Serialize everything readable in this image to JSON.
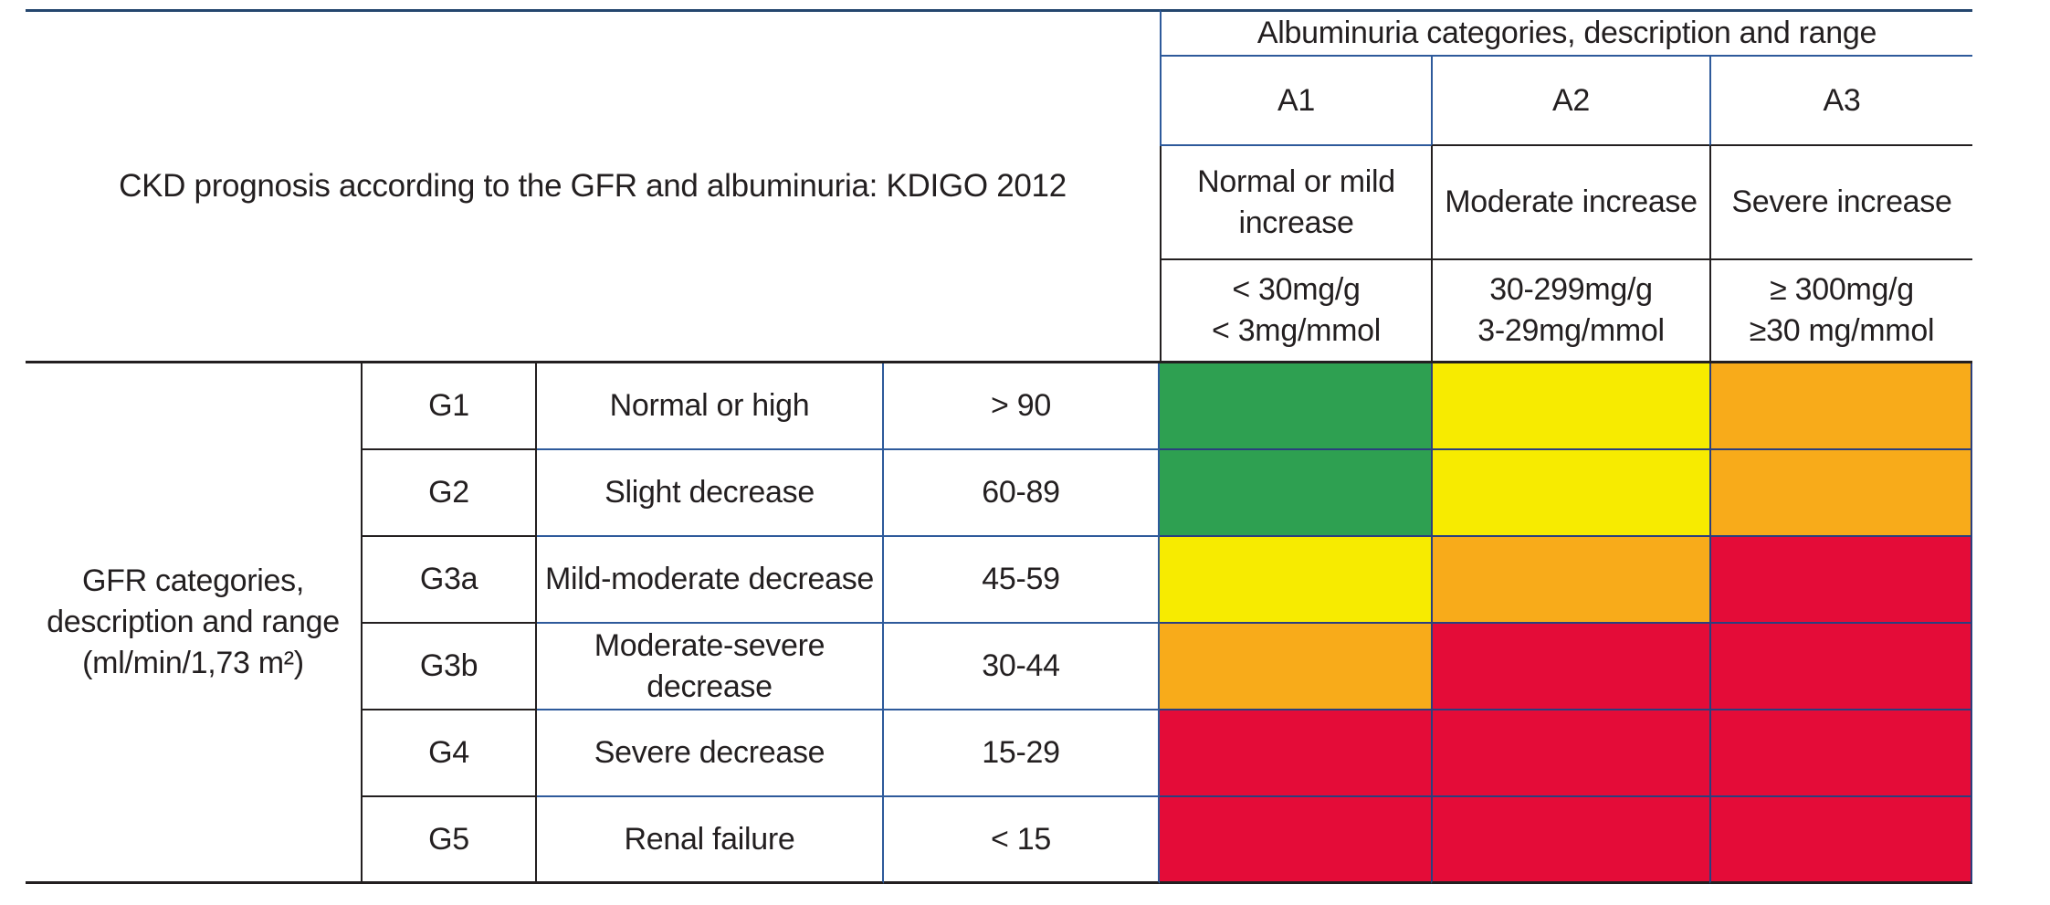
{
  "title": "CKD prognosis according to the GFR and albuminuria: KDIGO 2012",
  "albuminuria": {
    "header": "Albuminuria categories, description and range",
    "categories": [
      {
        "code": "A1",
        "description": "Normal or mild increase",
        "range_line1": "< 30mg/g",
        "range_line2": "< 3mg/mmol"
      },
      {
        "code": "A2",
        "description": "Moderate increase",
        "range_line1": "30-299mg/g",
        "range_line2": "3-29mg/mmol"
      },
      {
        "code": "A3",
        "description": "Severe increase",
        "range_line1": "≥ 300mg/g",
        "range_line2": "≥30 mg/mmol"
      }
    ]
  },
  "gfr": {
    "header_line1": "GFR categories,",
    "header_line2": "description and range",
    "header_line3": "(ml/min/1,73 m²)",
    "rows": [
      {
        "code": "G1",
        "description": "Normal or high",
        "range": "> 90",
        "risk": [
          "green",
          "yellow",
          "orange"
        ]
      },
      {
        "code": "G2",
        "description": "Slight decrease",
        "range": "60-89",
        "risk": [
          "green",
          "yellow",
          "orange"
        ]
      },
      {
        "code": "G3a",
        "description": "Mild-moderate decrease",
        "range": "45-59",
        "risk": [
          "yellow",
          "orange",
          "red"
        ]
      },
      {
        "code": "G3b",
        "description": "Moderate-severe decrease",
        "range": "30-44",
        "risk": [
          "orange",
          "red",
          "red"
        ]
      },
      {
        "code": "G4",
        "description": "Severe decrease",
        "range": "15-29",
        "risk": [
          "red",
          "red",
          "red"
        ]
      },
      {
        "code": "G5",
        "description": "Renal failure",
        "range": "< 15",
        "risk": [
          "red",
          "red",
          "red"
        ]
      }
    ]
  },
  "colors": {
    "green": "#2ea051",
    "yellow": "#f7eb00",
    "orange": "#f8ab1a",
    "red": "#e40c38"
  },
  "chart_data": {
    "type": "heatmap",
    "title": "CKD prognosis according to the GFR and albuminuria: KDIGO 2012",
    "x_axis_label": "Albuminuria categories, description and range",
    "y_axis_label": "GFR categories, description and range (ml/min/1,73 m²)",
    "x_categories": [
      "A1",
      "A2",
      "A3"
    ],
    "x_descriptions": [
      "Normal or mild increase",
      "Moderate increase",
      "Severe increase"
    ],
    "x_ranges": [
      "< 30mg/g | < 3mg/mmol",
      "30-299mg/g | 3-29mg/mmol",
      "≥ 300mg/g | ≥30 mg/mmol"
    ],
    "y_categories": [
      "G1",
      "G2",
      "G3a",
      "G3b",
      "G4",
      "G5"
    ],
    "y_descriptions": [
      "Normal or high",
      "Slight decrease",
      "Mild-moderate decrease",
      "Moderate-severe decrease",
      "Severe decrease",
      "Renal failure"
    ],
    "y_ranges": [
      "> 90",
      "60-89",
      "45-59",
      "30-44",
      "15-29",
      "< 15"
    ],
    "cells": [
      [
        "green",
        "yellow",
        "orange"
      ],
      [
        "green",
        "yellow",
        "orange"
      ],
      [
        "yellow",
        "orange",
        "red"
      ],
      [
        "orange",
        "red",
        "red"
      ],
      [
        "red",
        "red",
        "red"
      ],
      [
        "red",
        "red",
        "red"
      ]
    ],
    "cell_colors_hex": {
      "green": "#2ea051",
      "yellow": "#f7eb00",
      "orange": "#f8ab1a",
      "red": "#e40c38"
    },
    "legend_position": "none",
    "grid": true
  }
}
